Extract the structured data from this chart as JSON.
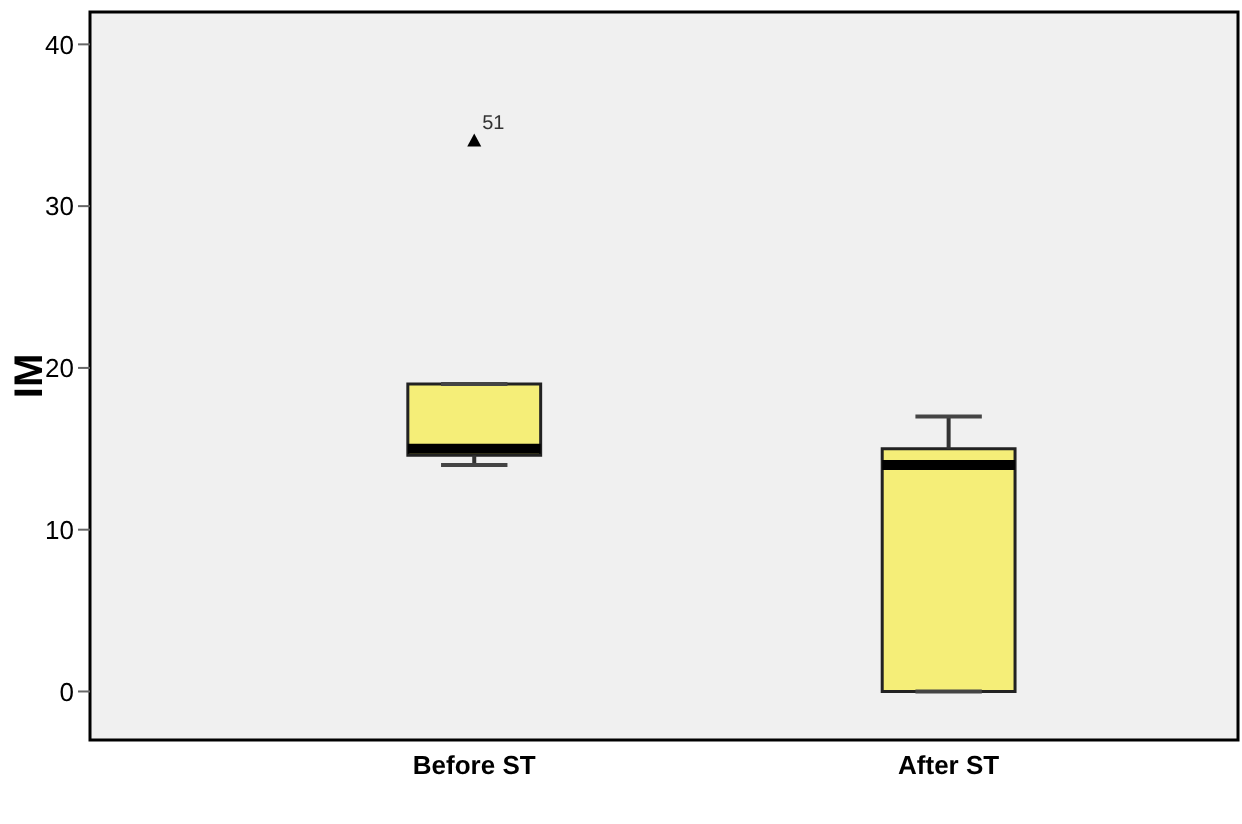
{
  "chart_data": {
    "type": "box",
    "ylabel": "IM",
    "categories": [
      "Before ST",
      "After ST"
    ],
    "boxes": [
      {
        "low": 14,
        "q1": 14.6,
        "median": 15,
        "q3": 19,
        "high": 19,
        "outliers": [
          34
        ]
      },
      {
        "low": 0,
        "q1": 0,
        "median": 14,
        "q3": 15,
        "high": 17
      }
    ],
    "color": "#f5ee78",
    "ylim": [
      -3,
      42
    ],
    "yticks": [
      0,
      10,
      20,
      30,
      40
    ],
    "marker": "triangle",
    "annotations": [
      "51"
    ]
  }
}
